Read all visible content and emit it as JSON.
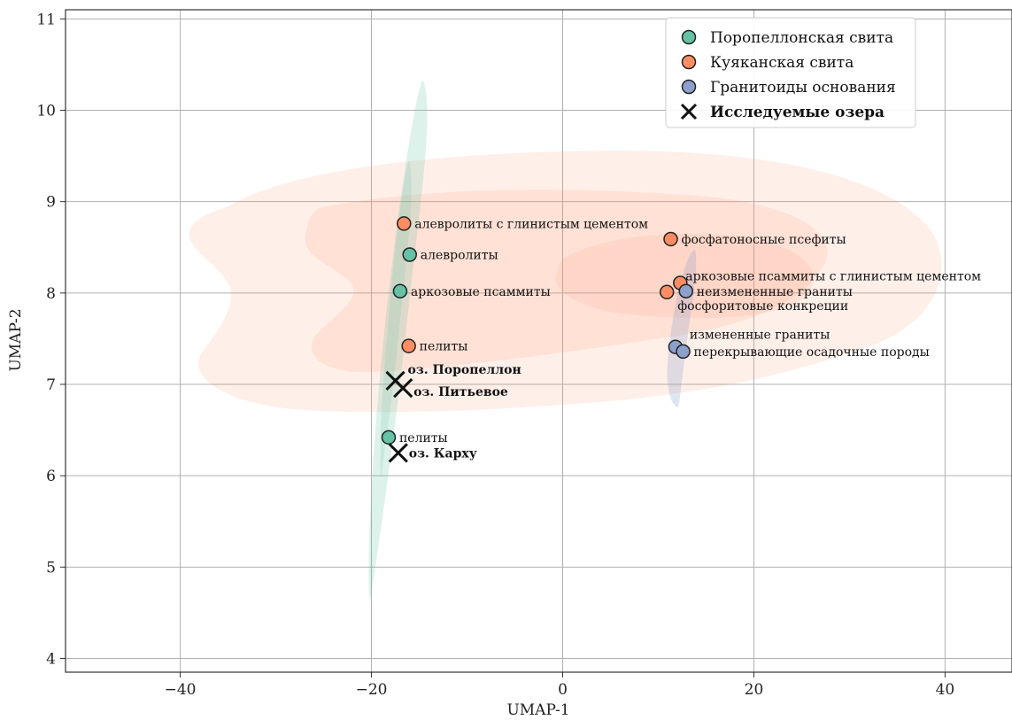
{
  "chart_data": {
    "type": "scatter",
    "title": "",
    "xlabel": "UMAP-1",
    "ylabel": "UMAP-2",
    "xlim": [
      -52,
      47
    ],
    "ylim": [
      3.85,
      11.1
    ],
    "xticks": [
      -40,
      -20,
      0,
      20,
      40
    ],
    "yticks": [
      4,
      5,
      6,
      7,
      8,
      9,
      10,
      11
    ],
    "xtick_labels": [
      "−40",
      "−20",
      "0",
      "20",
      "40"
    ],
    "ytick_labels": [
      "4",
      "5",
      "6",
      "7",
      "8",
      "9",
      "10",
      "11"
    ],
    "grid": true,
    "legend_position": "top-right",
    "colors": {
      "poropellon": "#66c2a5",
      "kuyakan": "#fc8d62",
      "granitoids": "#8da0cb",
      "lakes": "#111111"
    },
    "series": [
      {
        "name": "Поропеллонская свита",
        "color_key": "poropellon",
        "marker": "circle",
        "points": [
          {
            "x": -16.0,
            "y": 8.42,
            "label": "алевролиты"
          },
          {
            "x": -17.0,
            "y": 8.02,
            "label": "аркозовые псаммиты"
          },
          {
            "x": -18.2,
            "y": 6.42,
            "label": "пелиты"
          }
        ]
      },
      {
        "name": "Куяканская свита",
        "color_key": "kuyakan",
        "marker": "circle",
        "points": [
          {
            "x": -16.6,
            "y": 8.76,
            "label": "алевролиты с глинистым цементом"
          },
          {
            "x": -16.1,
            "y": 7.42,
            "label": "пелиты"
          },
          {
            "x": 11.3,
            "y": 8.59,
            "label": "фосфатоносные псефиты"
          },
          {
            "x": 12.3,
            "y": 8.11,
            "label": "аркозовые псаммиты с глинистым цементом"
          },
          {
            "x": 10.9,
            "y": 8.01,
            "label": "фосфоритовые конкреции"
          }
        ]
      },
      {
        "name": "Гранитоиды основания",
        "color_key": "granitoids",
        "marker": "circle",
        "points": [
          {
            "x": 12.9,
            "y": 8.02,
            "label": "неизмененные граниты"
          },
          {
            "x": 11.8,
            "y": 7.41,
            "label": "измененные граниты"
          },
          {
            "x": 12.6,
            "y": 7.36,
            "label": "перекрывающие осадочные породы"
          }
        ]
      },
      {
        "name": "Исследуемые озера",
        "color_key": "lakes",
        "marker": "x",
        "points": [
          {
            "x": -17.5,
            "y": 7.04,
            "label": "оз. Поропеллон"
          },
          {
            "x": -16.7,
            "y": 6.96,
            "label": "оз. Питьевое"
          },
          {
            "x": -17.2,
            "y": 6.25,
            "label": "оз. Карху"
          }
        ]
      }
    ],
    "legend": [
      {
        "label": "Поропеллонская свита",
        "marker": "circle",
        "color_key": "poropellon",
        "bold": false
      },
      {
        "label": "Куяканская свита",
        "marker": "circle",
        "color_key": "kuyakan",
        "bold": false
      },
      {
        "label": "Гранитоиды основания",
        "marker": "circle",
        "color_key": "granitoids",
        "bold": false
      },
      {
        "label": "Исследуемые озера",
        "marker": "x",
        "color_key": "lakes",
        "bold": true
      }
    ]
  }
}
